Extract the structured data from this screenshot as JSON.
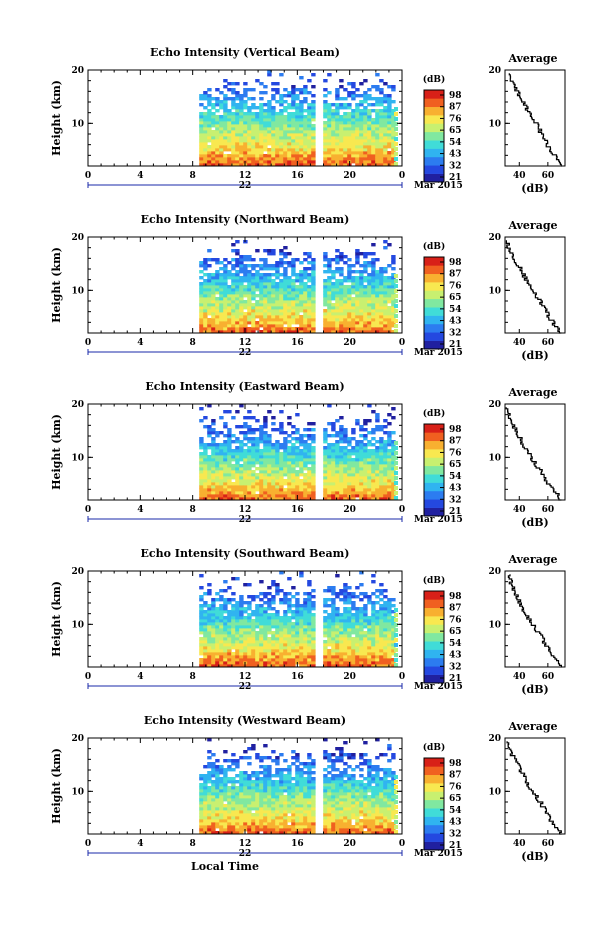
{
  "chart_data": [
    {
      "type": "heatmap",
      "title": "Echo Intensity (Vertical Beam)",
      "ylabel": "Height (km)",
      "xticks": [
        "0",
        "4",
        "8",
        "12",
        "16",
        "20",
        "0"
      ],
      "yticks": [
        "20",
        "10"
      ],
      "day_label": "22",
      "date_label": "Mar 2015",
      "colorbar": {
        "unit": "(dB)",
        "ticks": [
          "98",
          "87",
          "76",
          "65",
          "54",
          "43",
          "32",
          "21"
        ],
        "range": [
          21,
          98
        ]
      },
      "profile": {
        "title": "Average",
        "xlabel": "(dB)",
        "xticks": [
          "40",
          "60"
        ],
        "yticks": [
          "20",
          "10"
        ],
        "xlim": [
          30,
          72
        ],
        "ylim": [
          2,
          20
        ],
        "seed": 11,
        "heights": [
          2,
          4,
          6,
          8,
          10,
          12,
          14,
          16,
          18,
          19.5
        ],
        "values": [
          70,
          65,
          60,
          56,
          52,
          47,
          43,
          39,
          34,
          33
        ]
      },
      "data_start_hour": 8.5,
      "gap_hour": 17.5,
      "data_end_hour": 23.5,
      "x": [
        0,
        24
      ],
      "y_km": [
        2,
        20
      ]
    },
    {
      "type": "heatmap",
      "title": "Echo Intensity (Northward Beam)",
      "ylabel": "Height (km)",
      "xticks": [
        "0",
        "4",
        "8",
        "12",
        "16",
        "20",
        "0"
      ],
      "yticks": [
        "20",
        "10"
      ],
      "day_label": "22",
      "date_label": "Mar 2015",
      "colorbar": {
        "unit": "(dB)",
        "ticks": [
          "98",
          "87",
          "76",
          "65",
          "54",
          "43",
          "32",
          "21"
        ],
        "range": [
          21,
          98
        ]
      },
      "profile": {
        "title": "Average",
        "xlabel": "(dB)",
        "xticks": [
          "40",
          "60"
        ],
        "yticks": [
          "20",
          "10"
        ],
        "xlim": [
          30,
          72
        ],
        "ylim": [
          2,
          20
        ],
        "seed": 23,
        "heights": [
          2,
          4,
          6,
          8,
          10,
          12,
          14,
          16,
          18,
          19.5
        ],
        "values": [
          70,
          64,
          59,
          55,
          50,
          45,
          41,
          37,
          33,
          32
        ]
      },
      "data_start_hour": 8.5,
      "gap_hour": 17.5,
      "data_end_hour": 23.5,
      "x": [
        0,
        24
      ],
      "y_km": [
        2,
        20
      ]
    },
    {
      "type": "heatmap",
      "title": "Echo Intensity (Eastward Beam)",
      "ylabel": "Height (km)",
      "xticks": [
        "0",
        "4",
        "8",
        "12",
        "16",
        "20",
        "0"
      ],
      "yticks": [
        "20",
        "10"
      ],
      "day_label": "22",
      "date_label": "Mar 2015",
      "colorbar": {
        "unit": "(dB)",
        "ticks": [
          "98",
          "87",
          "76",
          "65",
          "54",
          "43",
          "32",
          "21"
        ],
        "range": [
          21,
          98
        ]
      },
      "profile": {
        "title": "Average",
        "xlabel": "(dB)",
        "xticks": [
          "40",
          "60"
        ],
        "yticks": [
          "20",
          "10"
        ],
        "xlim": [
          30,
          72
        ],
        "ylim": [
          2,
          20
        ],
        "seed": 37,
        "heights": [
          2,
          4,
          6,
          8,
          10,
          12,
          14,
          16,
          18,
          19.5
        ],
        "values": [
          70,
          64,
          58,
          54,
          49,
          44,
          40,
          36,
          33,
          32
        ]
      },
      "data_start_hour": 8.5,
      "gap_hour": 17.5,
      "data_end_hour": 23.5,
      "x": [
        0,
        24
      ],
      "y_km": [
        2,
        20
      ]
    },
    {
      "type": "heatmap",
      "title": "Echo Intensity (Southward Beam)",
      "ylabel": "Height (km)",
      "xticks": [
        "0",
        "4",
        "8",
        "12",
        "16",
        "20",
        "0"
      ],
      "yticks": [
        "20",
        "10"
      ],
      "day_label": "22",
      "date_label": "Mar 2015",
      "colorbar": {
        "unit": "(dB)",
        "ticks": [
          "98",
          "87",
          "76",
          "65",
          "54",
          "43",
          "32",
          "21"
        ],
        "range": [
          21,
          98
        ]
      },
      "profile": {
        "title": "Average",
        "xlabel": "(dB)",
        "xticks": [
          "40",
          "60"
        ],
        "yticks": [
          "20",
          "10"
        ],
        "xlim": [
          30,
          72
        ],
        "ylim": [
          2,
          20
        ],
        "seed": 41,
        "heights": [
          2,
          4,
          6,
          8,
          10,
          12,
          14,
          16,
          18,
          19.5
        ],
        "values": [
          70,
          65,
          59,
          55,
          50,
          45,
          41,
          37,
          34,
          33
        ]
      },
      "data_start_hour": 8.5,
      "gap_hour": 17.5,
      "data_end_hour": 23.5,
      "x": [
        0,
        24
      ],
      "y_km": [
        2,
        20
      ]
    },
    {
      "type": "heatmap",
      "title": "Echo Intensity (Westward Beam)",
      "ylabel": "Height (km)",
      "xticks": [
        "0",
        "4",
        "8",
        "12",
        "16",
        "20",
        "0"
      ],
      "yticks": [
        "20",
        "10"
      ],
      "day_label": "22",
      "date_label": "Mar 2015",
      "colorbar": {
        "unit": "(dB)",
        "ticks": [
          "98",
          "87",
          "76",
          "65",
          "54",
          "43",
          "32",
          "21"
        ],
        "range": [
          21,
          98
        ]
      },
      "profile": {
        "title": "Average",
        "xlabel": "(dB)",
        "xticks": [
          "40",
          "60"
        ],
        "yticks": [
          "20",
          "10"
        ],
        "xlim": [
          30,
          72
        ],
        "ylim": [
          2,
          20
        ],
        "seed": 53,
        "heights": [
          2,
          4,
          6,
          8,
          10,
          12,
          14,
          16,
          18,
          19.5
        ],
        "values": [
          70,
          64,
          59,
          55,
          50,
          45,
          41,
          37,
          33,
          32
        ]
      },
      "data_start_hour": 8.5,
      "gap_hour": 17.5,
      "data_end_hour": 23.5,
      "x": [
        0,
        24
      ],
      "y_km": [
        2,
        20
      ]
    }
  ],
  "xlabel": "Local Time",
  "colormap": [
    "#2020a0",
    "#2448e0",
    "#2c7cf0",
    "#30b4f0",
    "#40dcd8",
    "#80e8a0",
    "#c8f070",
    "#f8e850",
    "#f8b030",
    "#f06020",
    "#d82018"
  ]
}
